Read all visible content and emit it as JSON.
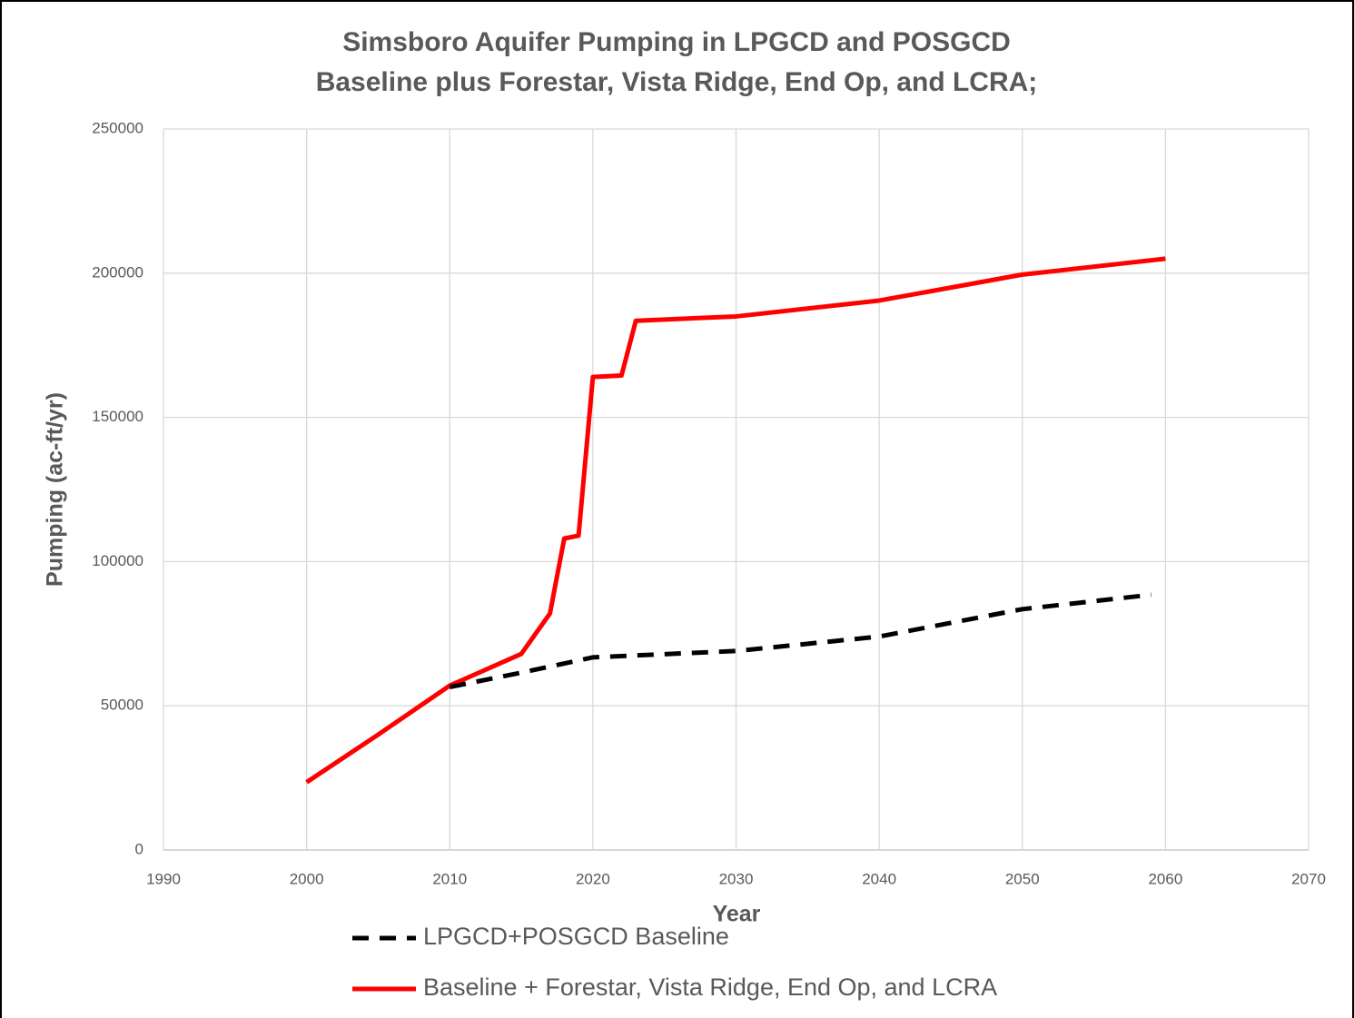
{
  "chart_data": {
    "type": "line",
    "title": [
      "Simsboro Aquifer Pumping in LPGCD and POSGCD",
      "Baseline plus Forestar, Vista Ridge, End Op, and LCRA;"
    ],
    "x_label": "Year",
    "y_label": "Pumping (ac-ft/yr)",
    "xlim": [
      1990,
      2070
    ],
    "xticks": [
      1990,
      2000,
      2010,
      2020,
      2030,
      2040,
      2050,
      2060,
      2070
    ],
    "ylim": [
      0,
      250000
    ],
    "yticks": [
      0,
      50000,
      100000,
      150000,
      200000,
      250000
    ],
    "grid": true,
    "legend": "bottom",
    "series": [
      {
        "name": "LPGCD+POSGCD Baseline",
        "color": "#000000",
        "dash": true,
        "x": [
          2010,
          2015,
          2020,
          2030,
          2040,
          2050,
          2059
        ],
        "values": [
          56500,
          61500,
          66800,
          69000,
          74000,
          83500,
          88500
        ]
      },
      {
        "name": "Baseline + Forestar, Vista Ridge, End Op, and LCRA",
        "color": "#ff0000",
        "dash": false,
        "x": [
          2000,
          2005,
          2010,
          2015,
          2017,
          2018,
          2019,
          2020,
          2022,
          2023,
          2030,
          2040,
          2050,
          2060
        ],
        "values": [
          23500,
          40000,
          57000,
          68000,
          82000,
          108000,
          109000,
          164000,
          164500,
          183500,
          185000,
          190500,
          199500,
          205000
        ]
      }
    ]
  }
}
